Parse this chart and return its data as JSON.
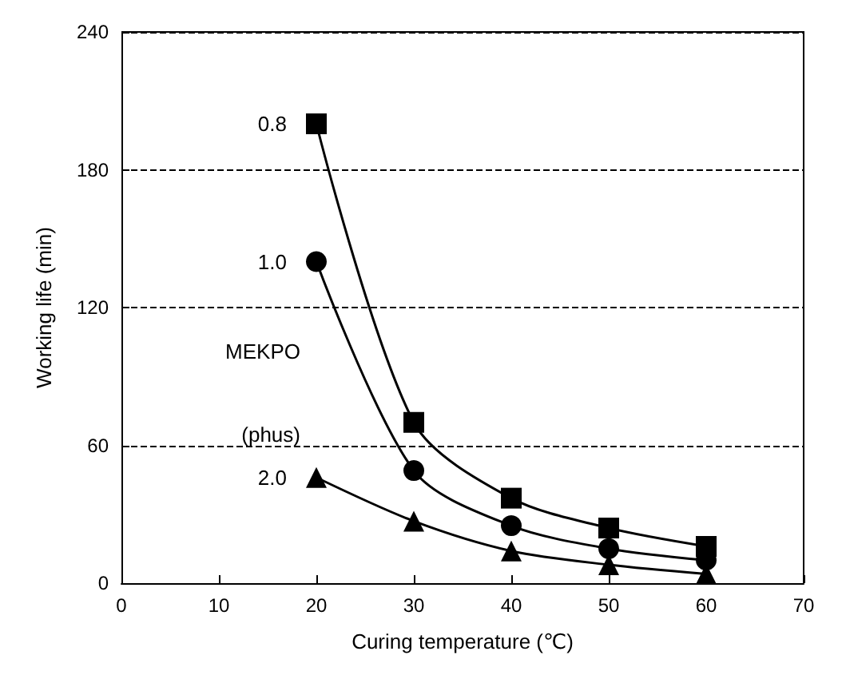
{
  "chart_data": {
    "type": "line",
    "xlabel": "Curing temperature (℃)",
    "ylabel": "Working life (min)",
    "x": [
      20,
      30,
      40,
      50,
      60
    ],
    "series": [
      {
        "name": "0.8",
        "color": "#000000",
        "marker": "square",
        "values": [
          200,
          70,
          37,
          24,
          16
        ]
      },
      {
        "name": "1.0",
        "color": "#000000",
        "marker": "circle",
        "values": [
          140,
          49,
          25,
          15,
          10
        ]
      },
      {
        "name": "2.0",
        "color": "#000000",
        "marker": "triangle",
        "values": [
          46,
          27,
          14,
          8,
          4
        ]
      }
    ],
    "annotations": [
      "MEKPO",
      "(phus)"
    ],
    "xlim": [
      0,
      70
    ],
    "xticks": [
      0,
      10,
      20,
      30,
      40,
      50,
      60,
      70
    ],
    "ylim": [
      0,
      240
    ],
    "yticks": [
      0,
      60,
      120,
      180,
      240
    ],
    "grid": "y",
    "legend": false
  }
}
